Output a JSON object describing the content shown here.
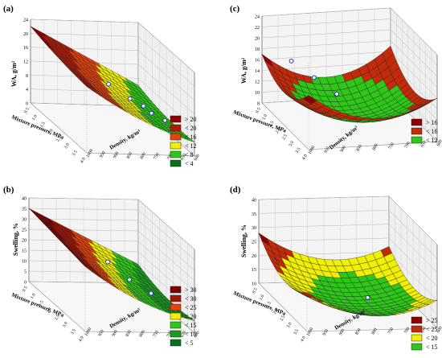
{
  "figure": {
    "panels": [
      {
        "label": "(a)",
        "zlabel": "WA, g/m²",
        "xlabel": "Mixture pressure, MPa",
        "ylabel": "Density, kg/m³",
        "zticks": [
          "0",
          "4",
          "8",
          "12",
          "16",
          "20",
          "24"
        ],
        "xticks": [
          "0.5",
          "1.0",
          "1.5",
          "2.0",
          "2.5",
          "3.0",
          "3.5",
          "4.0"
        ],
        "yticks": [
          "600",
          "650",
          "700",
          "750",
          "800",
          "850",
          "900",
          "950",
          "1000"
        ],
        "legend": [
          {
            "label": "> 20",
            "color": "#8e0000"
          },
          {
            "label": "< 20",
            "color": "#b01a08"
          },
          {
            "label": "< 16",
            "color": "#e2420c"
          },
          {
            "label": "< 12",
            "color": "#f0f000"
          },
          {
            "label": "< 8",
            "color": "#2fc61a"
          },
          {
            "label": "< 4",
            "color": "#0b6e1e"
          }
        ]
      },
      {
        "label": "(c)",
        "zlabel": "WA, g/m²",
        "xlabel": "Mixture pressure, MPa",
        "ylabel": "Density, kg/m³",
        "zticks": [
          "8",
          "10",
          "12",
          "14",
          "16",
          "18",
          "20",
          "22",
          "24"
        ],
        "xticks": [
          "0.5",
          "1.0",
          "1.5",
          "2.0",
          "2.5",
          "3.0",
          "3.5",
          "4.0"
        ],
        "yticks": [
          "600",
          "650",
          "700",
          "750",
          "800",
          "850",
          "900",
          "950",
          "1000"
        ],
        "legend": [
          {
            "label": "> 16",
            "color": "#8e0000"
          },
          {
            "label": "< 16",
            "color": "#c22a0a"
          },
          {
            "label": "< 12",
            "color": "#2fc61a"
          }
        ]
      },
      {
        "label": "(b)",
        "zlabel": "Swelling, %",
        "xlabel": "Mixture pressure, MPa",
        "ylabel": "Density, kg/m³",
        "zticks": [
          "0",
          "5",
          "10",
          "15",
          "20",
          "25",
          "30",
          "35",
          "40"
        ],
        "xticks": [
          "0.5",
          "1.0",
          "1.5",
          "2.0",
          "2.5",
          "3.0",
          "3.5",
          "4.0"
        ],
        "yticks": [
          "600",
          "650",
          "700",
          "750",
          "800",
          "850",
          "900",
          "950",
          "1000"
        ],
        "legend": [
          {
            "label": "> 30",
            "color": "#7d0000"
          },
          {
            "label": "< 30",
            "color": "#a01404"
          },
          {
            "label": "< 25",
            "color": "#e2420c"
          },
          {
            "label": "< 20",
            "color": "#f0f000"
          },
          {
            "label": "< 15",
            "color": "#2fc61a"
          },
          {
            "label": "< 10",
            "color": "#1b9a20"
          },
          {
            "label": "< 5",
            "color": "#0b6e1e"
          }
        ]
      },
      {
        "label": "(d)",
        "zlabel": "Swelling, %",
        "xlabel": "Mixture pressure, MPa",
        "ylabel": "Density, kg/m³",
        "zticks": [
          "10",
          "15",
          "20",
          "25",
          "30",
          "35",
          "40"
        ],
        "xticks": [
          "0.5",
          "1.0",
          "1.5",
          "2.0",
          "2.5",
          "3.0",
          "3.5",
          "4.0"
        ],
        "yticks": [
          "600",
          "650",
          "700",
          "750",
          "800",
          "850",
          "900",
          "950",
          "1000"
        ],
        "legend": [
          {
            "label": "> 25",
            "color": "#8e0000"
          },
          {
            "label": "< 25",
            "color": "#c22a0a"
          },
          {
            "label": "< 20",
            "color": "#f0f000"
          },
          {
            "label": "< 15",
            "color": "#2fc61a"
          }
        ]
      }
    ]
  },
  "chart_data": [
    {
      "type": "surface",
      "title": "(a)",
      "xlabel": "Mixture pressure, MPa",
      "ylabel": "Density, kg/m³",
      "zlabel": "WA, g/m²",
      "xlim": [
        0.5,
        4.0
      ],
      "ylim": [
        600,
        1000
      ],
      "zlim": [
        0,
        24
      ],
      "x": [
        0.5,
        2.25,
        4.0
      ],
      "y": [
        600,
        800,
        1000
      ],
      "z": [
        [
          22,
          14,
          6
        ],
        [
          20,
          11,
          4
        ],
        [
          19,
          10,
          4
        ]
      ],
      "points": [
        [
          2.0,
          800,
          12
        ],
        [
          2.5,
          850,
          10
        ],
        [
          3.0,
          900,
          8
        ],
        [
          3.5,
          950,
          6
        ],
        [
          2.5,
          900,
          8
        ],
        [
          3.0,
          950,
          6
        ]
      ]
    },
    {
      "type": "surface",
      "title": "(c)",
      "xlabel": "Mixture pressure, MPa",
      "ylabel": "Density, kg/m³",
      "zlabel": "WA, g/m²",
      "xlim": [
        0.5,
        4.0
      ],
      "ylim": [
        600,
        1000
      ],
      "zlim": [
        8,
        24
      ],
      "x": [
        0.5,
        2.25,
        4.0
      ],
      "y": [
        600,
        800,
        1000
      ],
      "z": [
        [
          17,
          12,
          17
        ],
        [
          14,
          9,
          13
        ],
        [
          18,
          13,
          16
        ]
      ],
      "points": [
        [
          1.5,
          650,
          18
        ],
        [
          2.0,
          700,
          16
        ],
        [
          2.5,
          750,
          14
        ]
      ]
    },
    {
      "type": "surface",
      "title": "(b)",
      "xlabel": "Mixture pressure, MPa",
      "ylabel": "Density, kg/m³",
      "zlabel": "Swelling, %",
      "xlim": [
        0.5,
        4.0
      ],
      "ylim": [
        600,
        1000
      ],
      "zlim": [
        0,
        40
      ],
      "x": [
        0.5,
        2.25,
        4.0
      ],
      "y": [
        600,
        800,
        1000
      ],
      "z": [
        [
          35,
          22,
          9
        ],
        [
          33,
          17,
          5
        ],
        [
          31,
          15,
          6
        ]
      ],
      "points": [
        [
          2.0,
          800,
          20
        ],
        [
          2.5,
          850,
          15
        ],
        [
          3.0,
          900,
          12
        ]
      ]
    },
    {
      "type": "surface",
      "title": "(d)",
      "xlabel": "Mixture pressure, MPa",
      "ylabel": "Density, kg/m³",
      "zlabel": "Swelling, %",
      "xlim": [
        0.5,
        4.0
      ],
      "ylim": [
        600,
        1000
      ],
      "zlim": [
        10,
        40
      ],
      "x": [
        0.5,
        2.25,
        4.0
      ],
      "y": [
        600,
        800,
        1000
      ],
      "z": [
        [
          28,
          18,
          22
        ],
        [
          20,
          12,
          16
        ],
        [
          24,
          15,
          20
        ]
      ],
      "points": [
        [
          2.5,
          850,
          14
        ]
      ]
    }
  ]
}
